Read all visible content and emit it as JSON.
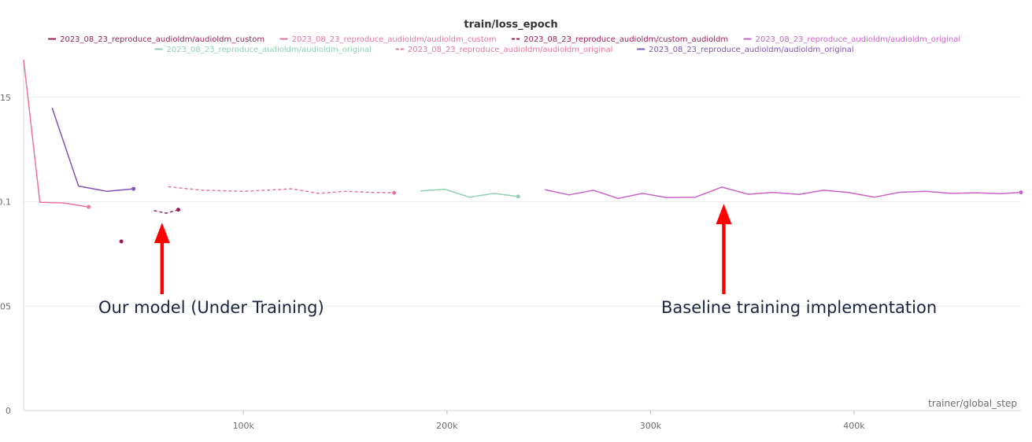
{
  "chart_data": {
    "type": "line",
    "title": "train/loss_epoch",
    "xlabel": "trainer/global_step",
    "ylabel": "",
    "xlim": [
      -8000,
      482000
    ],
    "ylim": [
      0,
      0.168
    ],
    "x_ticks": [
      100000,
      200000,
      300000,
      400000
    ],
    "x_tick_labels": [
      "100k",
      "200k",
      "300k",
      "400k"
    ],
    "y_ticks": [
      0,
      0.05,
      0.1,
      0.15
    ],
    "y_tick_labels": [
      "0",
      ".05",
      "0.1",
      ".15"
    ],
    "grid": true,
    "legend_position": "top-center",
    "series": [
      {
        "name": "2023_08_23_reproduce_audioldm/audioldm_custom",
        "color": "#9b1d5a",
        "dash": "solid",
        "x": [
          40000
        ],
        "y": [
          0.081
        ]
      },
      {
        "name": "2023_08_23_reproduce_audioldm/audioldm_custom",
        "color": "#e8769a",
        "dash": "solid",
        "x": [
          -8000,
          0,
          12000,
          24000
        ],
        "y": [
          0.168,
          0.0997,
          0.0994,
          0.0975
        ]
      },
      {
        "name": "2023_08_23_reproduce_audioldm/custom_audioldm",
        "color": "#9b1d5a",
        "dash": "dash",
        "x": [
          56000,
          62000,
          68000
        ],
        "y": [
          0.0958,
          0.0945,
          0.0962
        ]
      },
      {
        "name": "2023_08_23_reproduce_audioldm/audioldm_original",
        "color": "#c965c9",
        "dash": "solid",
        "x": [
          248000,
          260000,
          272000,
          284000,
          296000,
          308000,
          322000,
          335000,
          348000,
          360000,
          373000,
          385000,
          397000,
          410000,
          422000,
          435000,
          448000,
          460000,
          472000,
          482000
        ],
        "y": [
          0.1058,
          0.1033,
          0.1055,
          0.1016,
          0.104,
          0.102,
          0.1022,
          0.107,
          0.1036,
          0.1045,
          0.1035,
          0.1055,
          0.1045,
          0.1022,
          0.1045,
          0.105,
          0.104,
          0.1043,
          0.1039,
          0.1045
        ]
      },
      {
        "name": "2023_08_23_reproduce_audioldm/audioldm_original",
        "color": "#8fd1b0",
        "dash": "solid",
        "x": [
          187000,
          199000,
          211000,
          223000,
          235000
        ],
        "y": [
          0.1052,
          0.106,
          0.1022,
          0.104,
          0.1025
        ]
      },
      {
        "name": "2023_08_23_reproduce_audioldm/audioldm_original",
        "color": "#e8769a",
        "dash": "dash",
        "x": [
          63000,
          80000,
          100000,
          124000,
          137000,
          150000,
          162000,
          174000
        ],
        "y": [
          0.1072,
          0.1055,
          0.105,
          0.1062,
          0.104,
          0.105,
          0.1045,
          0.1043
        ]
      },
      {
        "name": "2023_08_23_reproduce_audioldm/audioldm_original",
        "color": "#8254b8",
        "dash": "solid",
        "x": [
          6000,
          19000,
          33000,
          46000
        ],
        "y": [
          0.145,
          0.1075,
          0.105,
          0.1062
        ]
      }
    ],
    "annotations": [
      {
        "text": "Our model (Under Training)",
        "arrow_x": 60000,
        "arrow_y": 0.09
      },
      {
        "text": "Baseline training implementation",
        "arrow_x": 336000,
        "arrow_y": 0.099
      }
    ]
  }
}
